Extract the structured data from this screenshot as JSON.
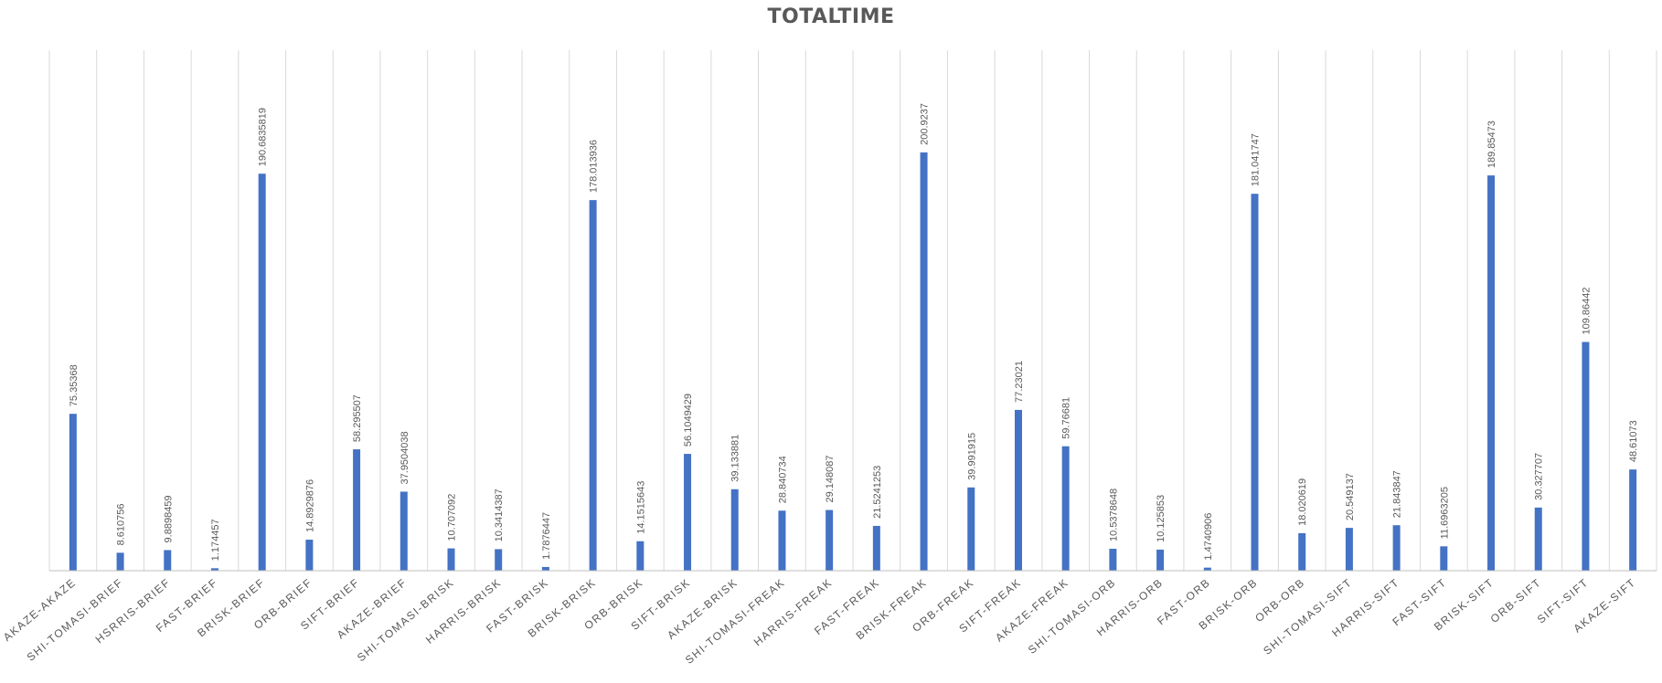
{
  "chart_data": {
    "type": "bar",
    "title": "TOTALTIME",
    "categories": [
      "AKAZE-AKAZE",
      "SHI-TOMASI-BRIEF",
      "HSRRIS-BRIEF",
      "FAST-BRIEF",
      "BRISK-BRIEF",
      "ORB-BRIEF",
      "SIFT-BRIEF",
      "AKAZE-BRIEF",
      "SHI-TOMASI-BRISK",
      "HARRIS-BRISK",
      "FAST-BRISK",
      "BRISK-BRISK",
      "ORB-BRISK",
      "SIFT-BRISK",
      "AKAZE-BRISK",
      "SHI-TOMASI-FREAK",
      "HARRIS-FREAK",
      "FAST-FREAK",
      "BRISK-FREAK",
      "ORB-FREAK",
      "SIFT-FREAK",
      "AKAZE-FREAK",
      "SHI-TOMASI-ORB",
      "HARRIS-ORB",
      "FAST-ORB",
      "BRISK-ORB",
      "ORB-ORB",
      "SHI-TOMASI-SIFT",
      "HARRIS-SIFT",
      "FAST-SIFT",
      "BRISK-SIFT",
      "ORB-SIFT",
      "SIFT-SIFT",
      "AKAZE-SIFT"
    ],
    "values": [
      75.35368,
      8.610756,
      9.8898459,
      1.174457,
      190.6835819,
      14.8929876,
      58.295507,
      37.9504038,
      10.707092,
      10.3414387,
      1.7876447,
      178.013936,
      14.1515643,
      56.1049429,
      39.133881,
      28.840734,
      29.148087,
      21.5241253,
      200.9237,
      39.991915,
      77.23021,
      59.76681,
      10.5378648,
      10.125853,
      1.4740906,
      181.041747,
      18.020619,
      20.549137,
      21.843847,
      11.6963205,
      189.85473,
      30.327707,
      109.86442,
      48.61073
    ],
    "labels": [
      "75.35368",
      "8.610756",
      "9.8898459",
      "1.174457",
      "190.6835819",
      "14.8929876",
      "58.295507",
      "37.9504038",
      "10.707092",
      "10.3414387",
      "1.7876447",
      "178.013936",
      "14.1515643",
      "56.1049429",
      "39.133881",
      "28.840734",
      "29.148087",
      "21.5241253",
      "200.9237",
      "39.991915",
      "77.23021",
      "59.76681",
      "10.5378648",
      "10.125853",
      "1.4740906",
      "181.041747",
      "18.020619",
      "20.549137",
      "21.843847",
      "11.6963205",
      "189.85473",
      "30.327707",
      "109.86442",
      "48.61073"
    ],
    "xlabel": "",
    "ylabel": "",
    "ylim": [
      0,
      250
    ],
    "grid": "vertical category gridlines",
    "legend": "none",
    "colors": {
      "bar": "#4472c4",
      "grid": "#d9d9d9",
      "text": "#595959"
    }
  }
}
